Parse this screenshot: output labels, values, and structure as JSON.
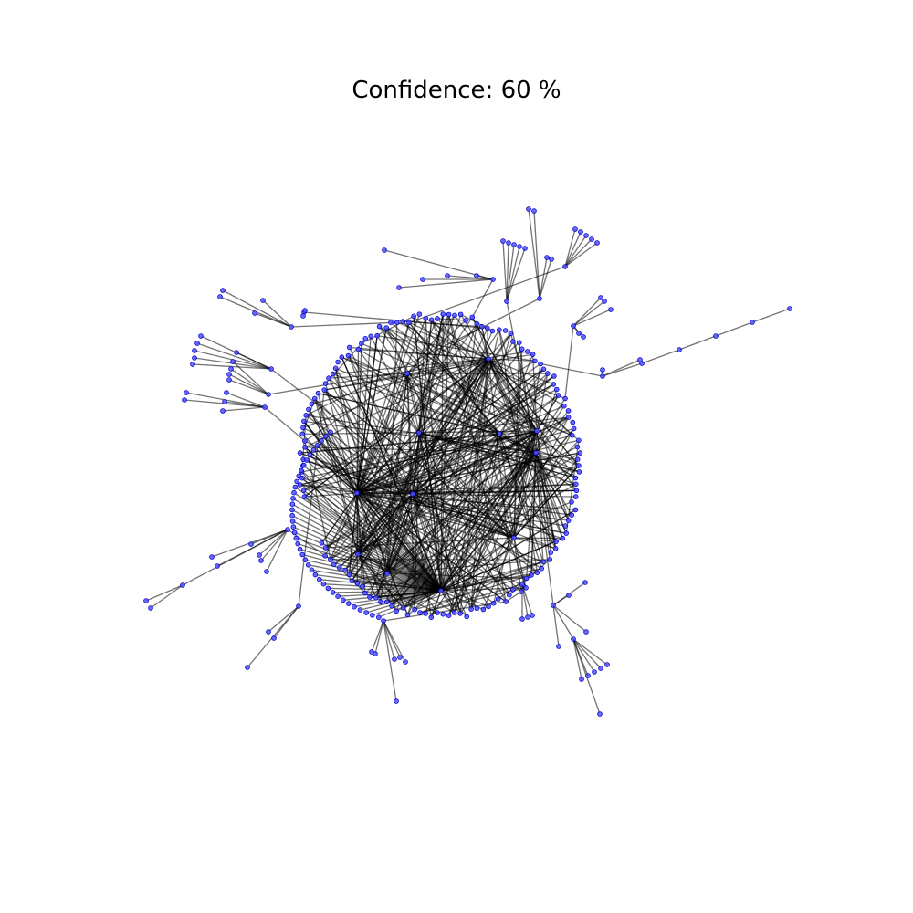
{
  "figure": {
    "title": "Confidence: 60 %"
  },
  "graph": {
    "type": "network",
    "node_color": "#5555ff",
    "node_edge_color": "#0000cc",
    "edge_color": "#000000",
    "background": "#ffffff"
  }
}
